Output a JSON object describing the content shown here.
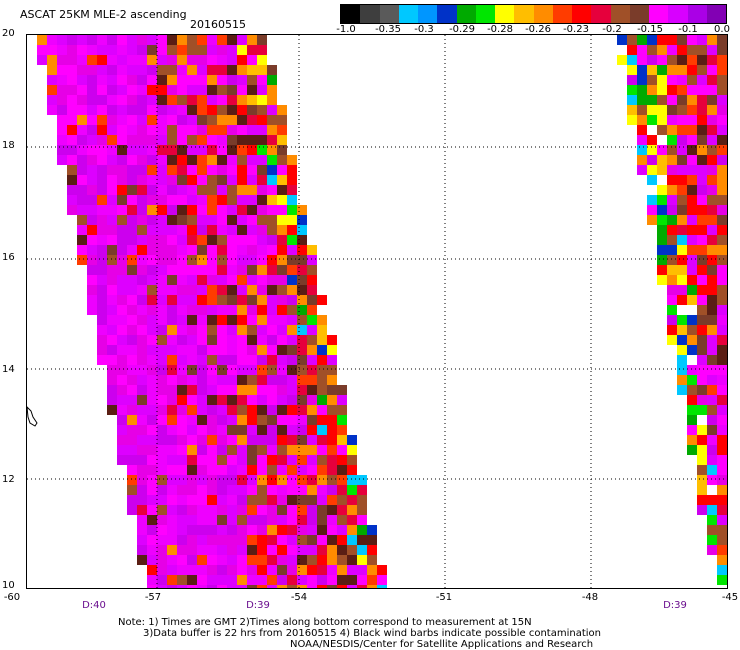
{
  "header": {
    "title": "ASCAT 25KM MLE-2 ascending",
    "date": "20160515"
  },
  "colorbar": {
    "colors": [
      "#000000",
      "#3e3e3e",
      "#5a5a5a",
      "#00c8ff",
      "#0096ff",
      "#0032c8",
      "#00aa00",
      "#00e600",
      "#ffff00",
      "#ffbe00",
      "#ff8c00",
      "#ff3c00",
      "#ff0000",
      "#e6003c",
      "#a05028",
      "#7a3c2a",
      "#ff00ff",
      "#d800ff",
      "#aa00e6",
      "#8200b4"
    ],
    "ticks": [
      "-1.0",
      "-0.35",
      "-0.3",
      "-0.29",
      "-0.28",
      "-0.26",
      "-0.23",
      "-0.2",
      "-0.15",
      "-0.1",
      "0.0"
    ]
  },
  "axes": {
    "y_ticks": [
      "20",
      "18",
      "16",
      "14",
      "12",
      "10"
    ],
    "x_ticks": [
      "-60",
      "-57",
      "-54",
      "-51",
      "-48",
      "-45"
    ],
    "time_labels": [
      "D:40",
      "D:39",
      "D:39"
    ]
  },
  "notes": {
    "line1": "Note: 1) Times are GMT 2)Times along bottom correspond to measurement at 15N",
    "line2": "3)Data buffer is 22 hrs from 20160515 4) Black wind barbs indicate possible contamination",
    "line3": "NOAA/NESDIS/Center for Satellite Applications and Research"
  }
}
